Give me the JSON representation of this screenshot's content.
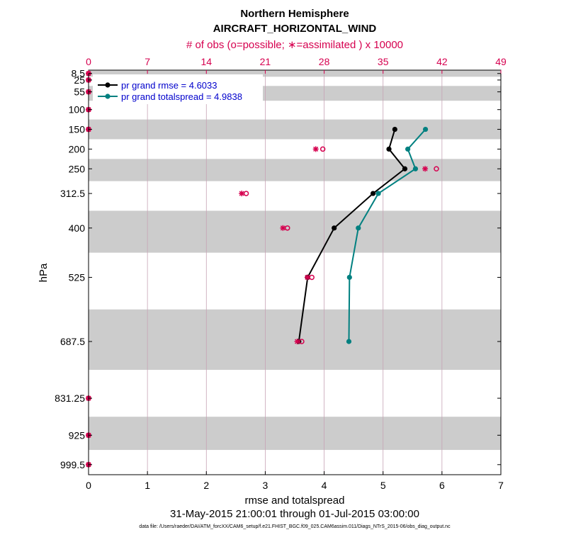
{
  "chart_data": {
    "type": "line",
    "title": "Northern Hemisphere",
    "subtitle": "AIRCRAFT_HORIZONTAL_WIND",
    "top_axis_label": "# of obs (o=possible; ∗=assimilated ) x 10000",
    "xlabel": "rmse and totalspread",
    "ylabel": "hPa",
    "date_range": "31-May-2015 21:00:01 through 01-Jul-2015 03:00:00",
    "footer": "data file: /Users/raeder/DAI/ATM_forcXX/CAM6_setup/f.e21.FHIST_BGC.f09_025.CAM6assim.011/Diags_NTrS_2015-06/obs_diag_output.nc",
    "xlim": [
      0,
      7
    ],
    "x_ticks": [
      "0",
      "1",
      "2",
      "3",
      "4",
      "5",
      "6",
      "7"
    ],
    "top_xlim": [
      0,
      49
    ],
    "top_ticks": [
      "0",
      "7",
      "14",
      "21",
      "28",
      "35",
      "42",
      "49"
    ],
    "y_ticks": [
      "8.5",
      "25",
      "55",
      "100",
      "150",
      "200",
      "250",
      "312.5",
      "400",
      "525",
      "687.5",
      "831.25",
      "925",
      "999.5"
    ],
    "y_levels": [
      8.5,
      25,
      55,
      100,
      150,
      200,
      250,
      312.5,
      400,
      525,
      687.5,
      831.25,
      925,
      999.5
    ],
    "y_scale": "linear",
    "y_reversed": true,
    "grid": {
      "x": true,
      "y": false
    },
    "legend_placement": "top-left",
    "legend": [
      "pr grand rmse = 4.6033",
      "pr grand totalspread = 4.9838"
    ],
    "series": [
      {
        "name": "pr grand rmse = 4.6033",
        "color": "#000000",
        "x": [
          5.2,
          5.1,
          5.37,
          4.83,
          4.17,
          3.72,
          3.57
        ],
        "y": [
          150,
          200,
          250,
          312.5,
          400,
          525,
          687.5
        ]
      },
      {
        "name": "pr grand totalspread = 4.9838",
        "color": "#008080",
        "x": [
          5.72,
          5.42,
          5.55,
          4.92,
          4.58,
          4.43,
          4.42
        ],
        "y": [
          150,
          200,
          250,
          312.5,
          400,
          525,
          687.5
        ]
      }
    ],
    "obs_counts": {
      "color": "#d6004f",
      "levels": [
        8.5,
        25,
        55,
        100,
        150,
        200,
        250,
        312.5,
        400,
        525,
        687.5,
        831.25,
        925,
        999.5
      ],
      "possible": [
        0,
        0,
        0,
        0,
        0,
        27.5,
        41,
        18.4,
        23.3,
        26.2,
        25,
        0,
        0,
        0
      ],
      "assimilated": [
        0,
        0,
        0,
        0,
        0,
        27,
        40,
        18.2,
        23.1,
        26,
        24.8,
        0,
        0,
        0
      ]
    }
  }
}
